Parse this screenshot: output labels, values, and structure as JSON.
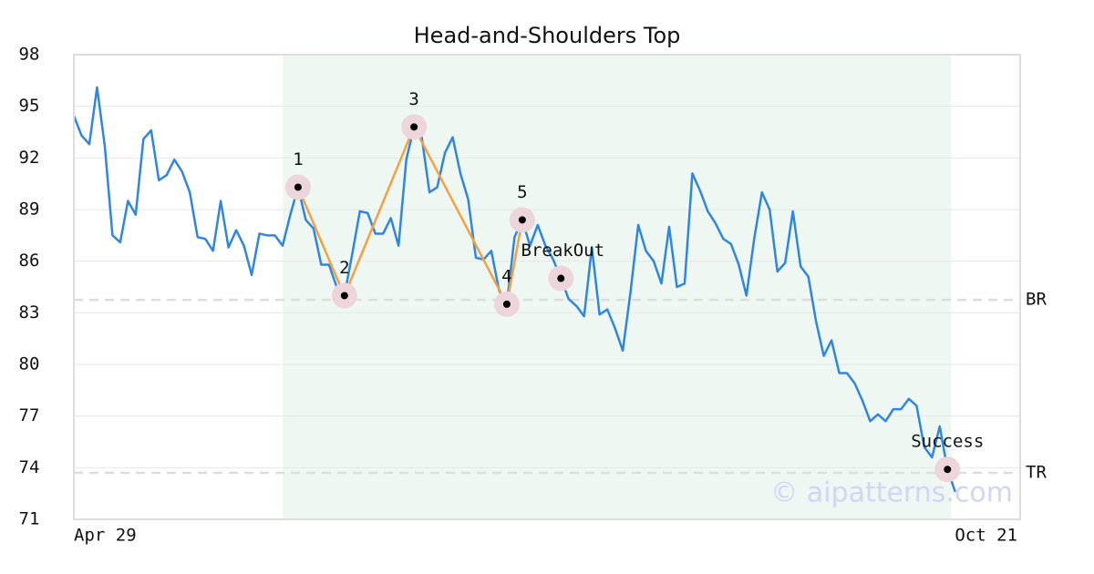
{
  "chart_data": {
    "type": "line",
    "title": "Head-and-Shoulders Top",
    "watermark": "© aipatterns.com",
    "categories": [
      "Apr 29",
      null,
      null,
      null,
      null,
      null,
      null,
      null,
      null,
      null,
      null,
      null,
      null,
      null,
      null,
      null,
      null,
      null,
      null,
      null,
      null,
      null,
      null,
      null,
      null,
      null,
      null,
      null,
      null,
      null,
      null,
      null,
      null,
      null,
      null,
      null,
      null,
      null,
      null,
      null,
      null,
      null,
      null,
      null,
      null,
      null,
      null,
      null,
      null,
      null,
      null,
      null,
      null,
      null,
      null,
      null,
      null,
      null,
      null,
      null,
      null,
      null,
      null,
      null,
      null,
      null,
      null,
      null,
      null,
      null,
      null,
      null,
      null,
      null,
      null,
      null,
      null,
      null,
      null,
      null,
      null,
      null,
      null,
      null,
      null,
      null,
      null,
      null,
      null,
      null,
      null,
      null,
      null,
      null,
      null,
      null,
      null,
      null,
      null,
      null,
      null,
      null,
      null,
      null,
      null,
      null,
      null,
      null,
      null,
      null,
      null,
      null,
      null,
      null,
      null,
      null,
      null,
      null,
      "Oct 21",
      null,
      null,
      null,
      null
    ],
    "series": [
      {
        "color": "#2f86e0",
        "values": [
          94.45,
          93.3,
          92.8,
          96.1,
          92.7,
          87.5,
          87.1,
          89.5,
          88.7,
          93.1,
          93.6,
          90.7,
          91.0,
          91.9,
          91.2,
          90.0,
          87.4,
          87.3,
          86.6,
          89.5,
          86.8,
          87.8,
          86.9,
          85.2,
          87.6,
          87.5,
          87.5,
          86.9,
          88.7,
          90.3,
          88.4,
          87.9,
          85.8,
          85.8,
          84.5,
          84.0,
          86.4,
          88.9,
          88.8,
          87.6,
          87.6,
          88.5,
          86.9,
          91.9,
          93.8,
          93.2,
          90.0,
          90.3,
          92.3,
          93.2,
          91.1,
          89.6,
          86.2,
          86.1,
          86.6,
          84.3,
          83.5,
          87.4,
          88.4,
          86.9,
          88.1,
          86.9,
          86.1,
          85.0,
          83.8,
          83.4,
          82.8,
          86.8,
          82.9,
          83.2,
          82.1,
          80.8,
          84.2,
          88.1,
          86.6,
          86.0,
          84.7,
          88.0,
          84.5,
          84.7,
          91.1,
          90.1,
          88.9,
          88.2,
          87.3,
          87.0,
          85.8,
          84.0,
          87.3,
          90.0,
          89.0,
          85.4,
          85.9,
          88.9,
          85.7,
          85.1,
          82.5,
          80.5,
          81.4,
          79.5,
          79.5,
          78.9,
          77.9,
          76.7,
          77.1,
          76.7,
          77.4,
          77.4,
          78.0,
          77.6,
          75.2,
          74.6,
          76.4,
          73.9,
          72.6,
          null,
          null,
          null,
          null,
          null,
          null,
          null,
          null
        ]
      }
    ],
    "pattern": {
      "color": "#f5a040",
      "points": [
        {
          "x": 29,
          "value": 90.3,
          "label": "1"
        },
        {
          "x": 35,
          "value": 84.0,
          "label": "2"
        },
        {
          "x": 44,
          "value": 93.8,
          "label": "3"
        },
        {
          "x": 56,
          "value": 83.5,
          "label": "4"
        },
        {
          "x": 58,
          "value": 88.4,
          "label": "5"
        }
      ]
    },
    "signals": [
      {
        "x": 63,
        "value": 85.0,
        "label": "BreakOut"
      },
      {
        "x": 113,
        "value": 73.9,
        "label": "Success"
      }
    ],
    "highlight": [
      27,
      113
    ],
    "reference_lines": [
      {
        "value": 83.75,
        "label": "BR"
      },
      {
        "value": 73.7,
        "label": "TR"
      }
    ],
    "ylim": [
      71,
      98
    ],
    "yticks": [
      71,
      74,
      77,
      80,
      83,
      86,
      89,
      92,
      95,
      98
    ],
    "grid": true
  }
}
